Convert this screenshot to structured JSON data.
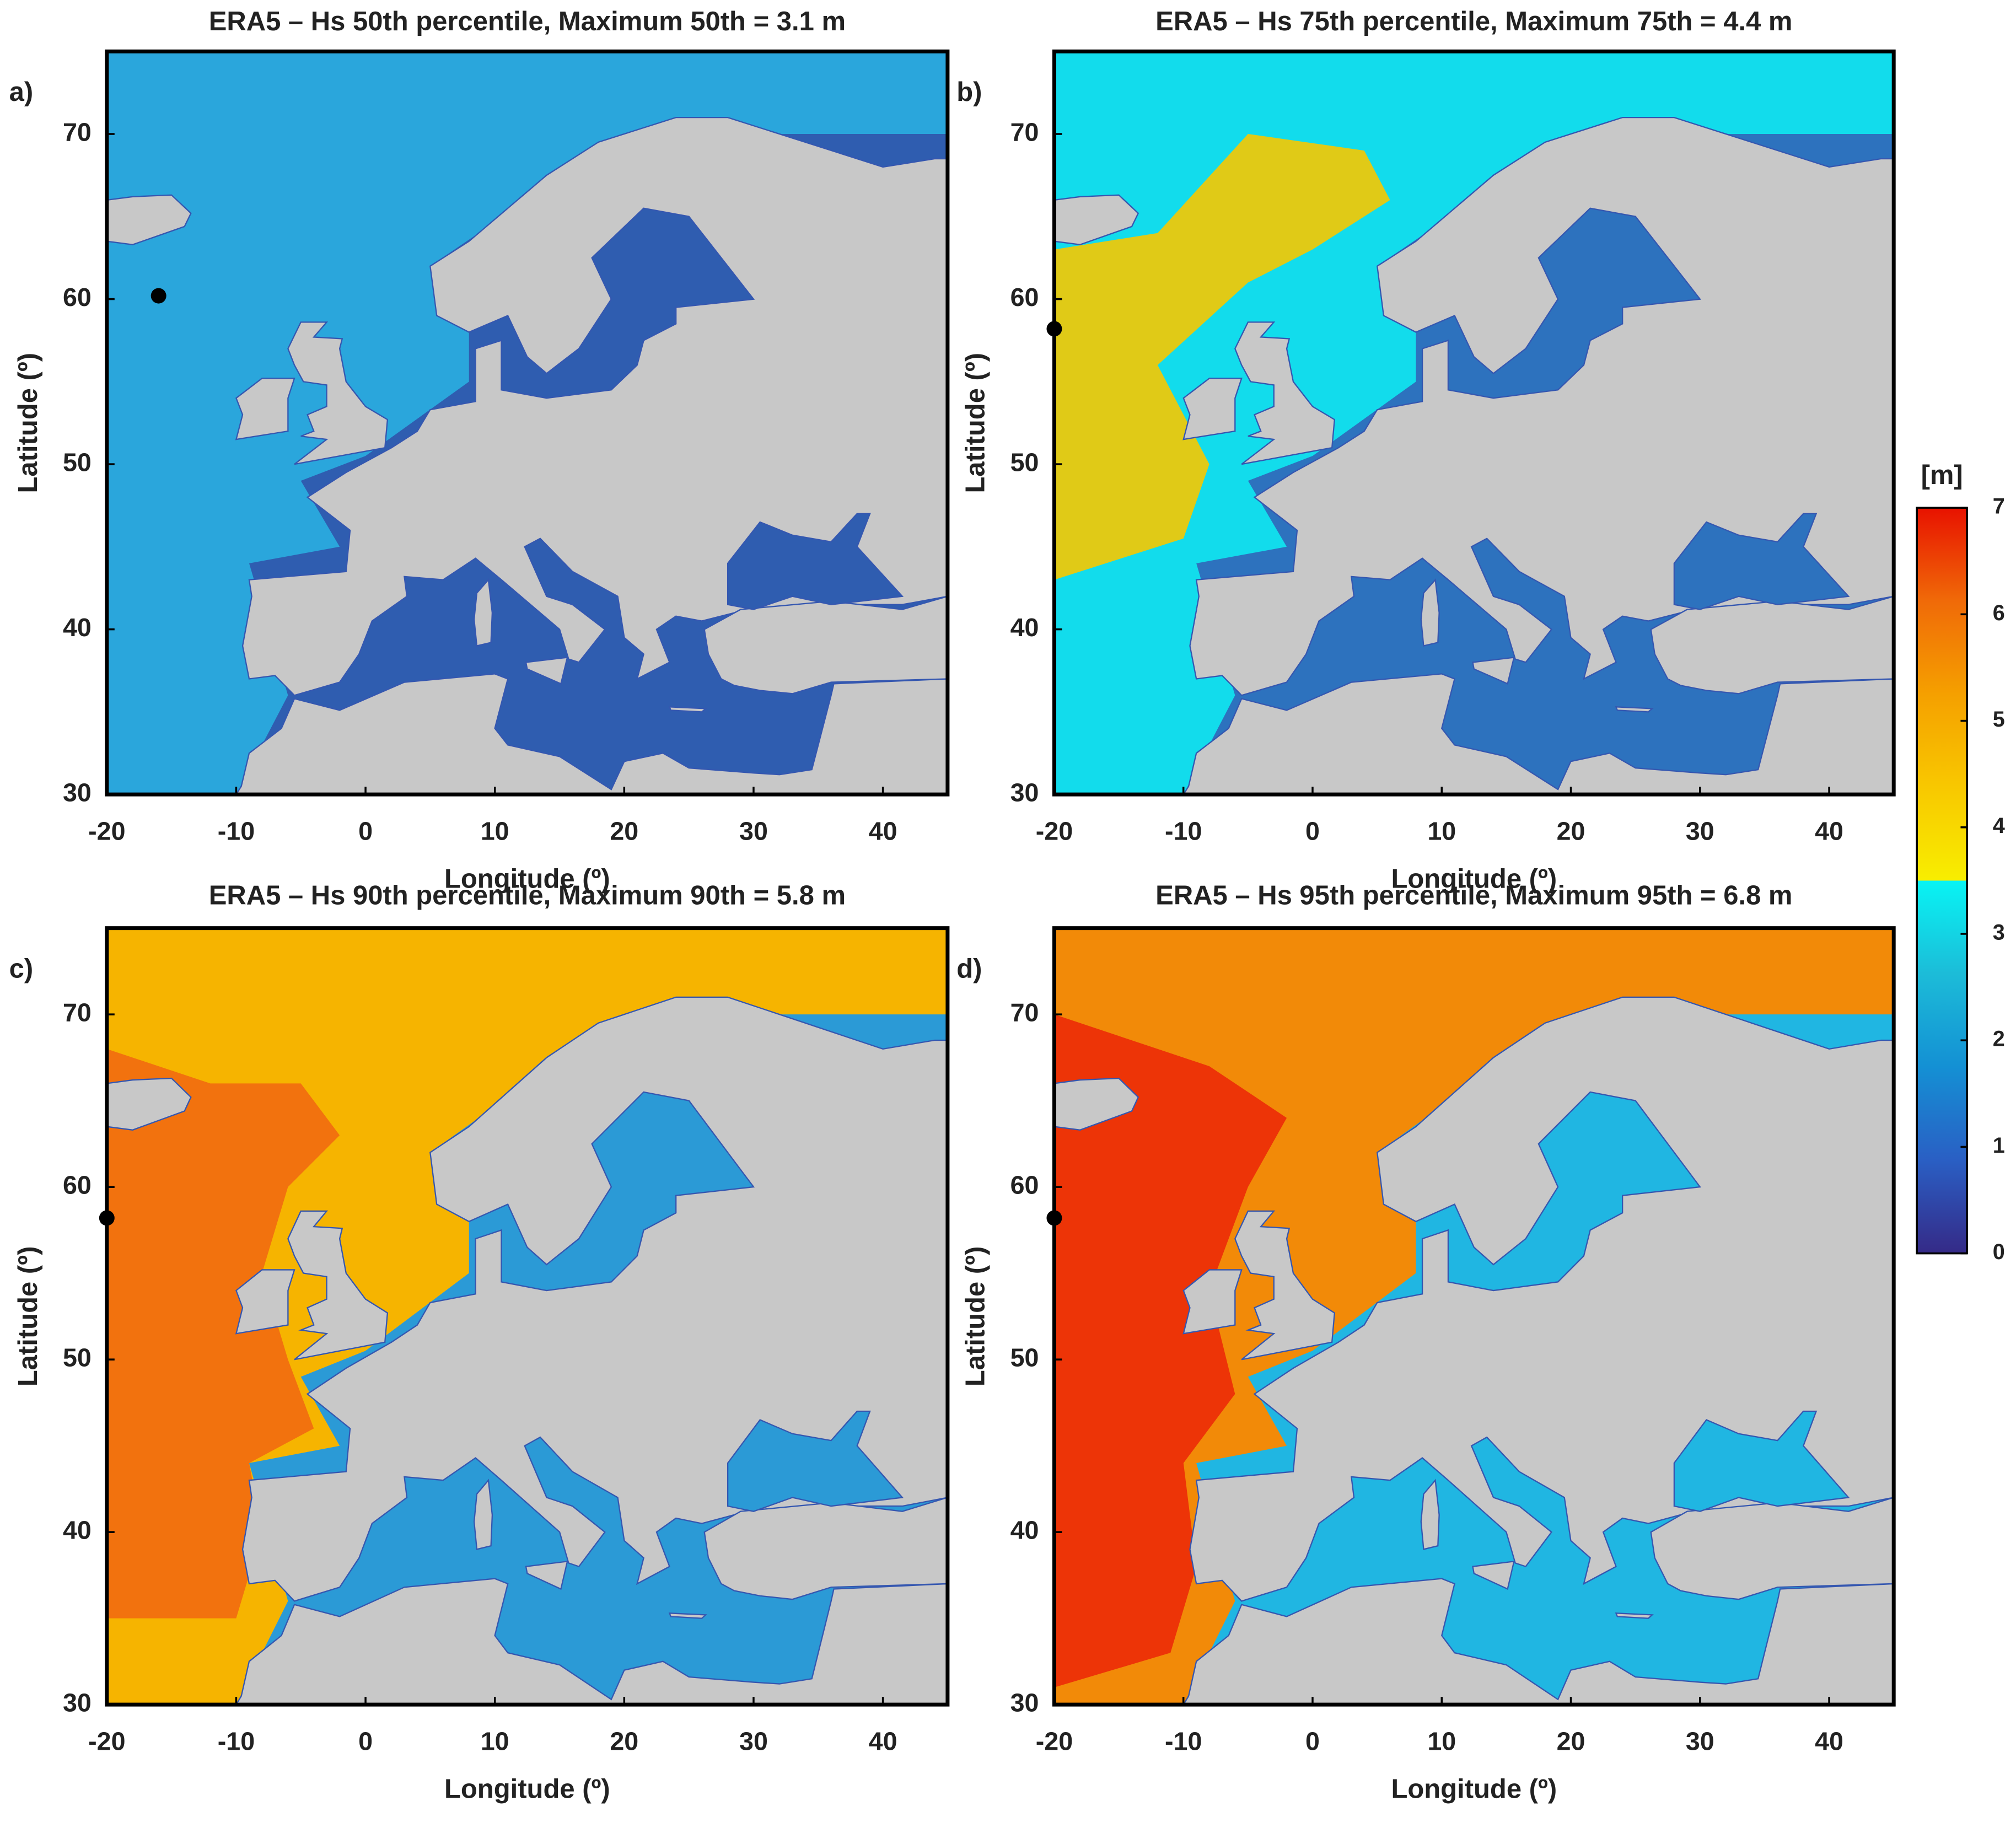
{
  "chart_data": [
    {
      "type": "map",
      "panel": "a)",
      "title": "ERA5 – Hs 50th percentile, Maximum 50th = 3.1 m",
      "xlabel": "Longitude (º)",
      "ylabel": "Latitude (º)",
      "xlim": [
        -20,
        45
      ],
      "ylim": [
        30,
        75
      ],
      "xticks": [
        -20,
        -10,
        0,
        10,
        20,
        30,
        40
      ],
      "yticks": [
        30,
        40,
        50,
        60,
        70
      ],
      "max_point": {
        "lon": -16,
        "lat": 60.2
      },
      "colors": {
        "ocean": "#2aa6dc",
        "inner_sea": "#2f5db0",
        "land": "#c8c8c8"
      }
    },
    {
      "type": "map",
      "panel": "b)",
      "title": "ERA5 – Hs 75th percentile, Maximum 75th = 4.4 m",
      "xlabel": "Longitude (º)",
      "ylabel": "Latitude (º)",
      "xlim": [
        -20,
        45
      ],
      "ylim": [
        30,
        75
      ],
      "xticks": [
        -20,
        -10,
        0,
        10,
        20,
        30,
        40
      ],
      "yticks": [
        30,
        40,
        50,
        60,
        70
      ],
      "max_point": {
        "lon": -20,
        "lat": 58.2
      },
      "colors": {
        "ocean": "#12dcec",
        "inner_sea": "#2d72be",
        "hot": "#f7c800",
        "land": "#c8c8c8"
      }
    },
    {
      "type": "map",
      "panel": "c)",
      "title": "ERA5 – Hs 90th percentile, Maximum 90th = 5.8 m",
      "xlabel": "Longitude (º)",
      "ylabel": "Latitude (º)",
      "xlim": [
        -20,
        45
      ],
      "ylim": [
        30,
        75
      ],
      "xticks": [
        -20,
        -10,
        0,
        10,
        20,
        30,
        40
      ],
      "yticks": [
        30,
        40,
        50,
        60,
        70
      ],
      "max_point": {
        "lon": -20,
        "lat": 58.2
      },
      "colors": {
        "ocean": "#f6b400",
        "inner_sea": "#2b9ad6",
        "hot": "#f26a10",
        "land": "#c8c8c8"
      }
    },
    {
      "type": "map",
      "panel": "d)",
      "title": "ERA5 – Hs 95th percentile, Maximum 95th = 6.8 m",
      "xlabel": "Longitude (º)",
      "ylabel": "Latitude (º)",
      "xlim": [
        -20,
        45
      ],
      "ylim": [
        30,
        75
      ],
      "xticks": [
        -20,
        -10,
        0,
        10,
        20,
        30,
        40
      ],
      "yticks": [
        30,
        40,
        50,
        60,
        70
      ],
      "max_point": {
        "lon": -20,
        "lat": 58.2
      },
      "colors": {
        "ocean": "#f28a08",
        "inner_sea": "#20b6e2",
        "hot": "#ec2a08",
        "land": "#c8c8c8"
      }
    },
    {
      "type": "colorbar",
      "label": "[m]",
      "ylim": [
        0,
        7
      ],
      "yticks": [
        0,
        1,
        2,
        3,
        4,
        5,
        6,
        7
      ],
      "low_colors": [
        "#352a87",
        "#2a5fc4",
        "#1490d4",
        "#1cbcd8",
        "#08f4f4"
      ],
      "high_colors": [
        "#f8ee00",
        "#f8c800",
        "#f5a000",
        "#f06a08",
        "#e81200"
      ]
    }
  ]
}
